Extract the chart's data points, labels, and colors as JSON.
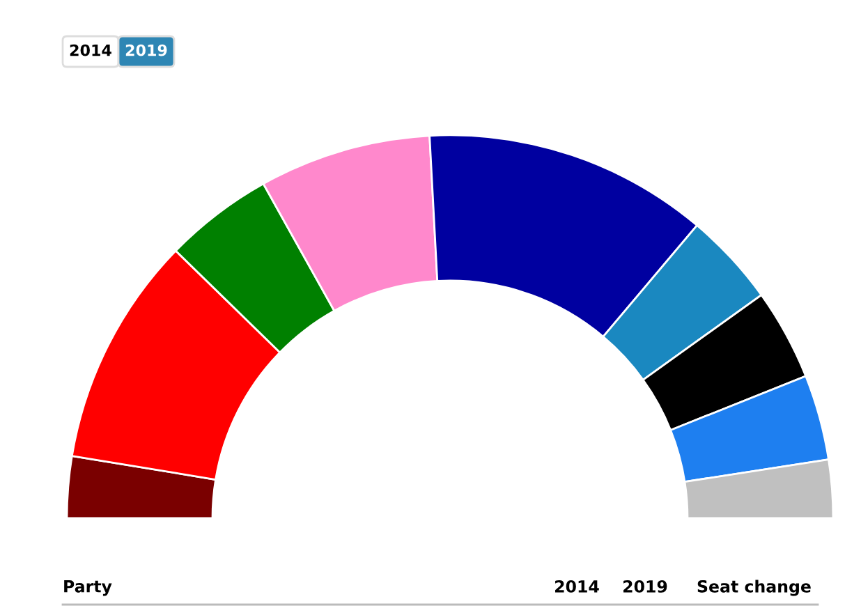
{
  "chart_data": {
    "type": "donut",
    "categories": [
      null,
      null,
      null,
      null,
      null,
      null,
      null,
      null,
      null
    ],
    "values": [
      5.2,
      19.4,
      9.2,
      14.5,
      24.0,
      7.9,
      7.7,
      7.2,
      4.9
    ],
    "colors": [
      "#7a0000",
      "#ff0000",
      "#008000",
      "#ff88cc",
      "#0000a0",
      "#1a88c0",
      "#000000",
      "#1e7ff0",
      "#c0c0c0"
    ],
    "annotations": [
      "2014",
      "2019",
      "Party",
      "2014",
      "2019",
      "Seat change"
    ]
  }
}
